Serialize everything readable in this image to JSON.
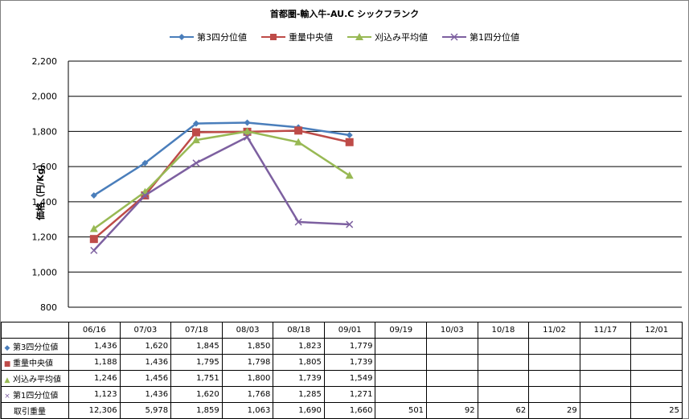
{
  "chart_data": {
    "type": "line",
    "title": "首都圏-輸入牛-AU.C シックフランク",
    "ylabel": "価格（円/Kg）",
    "ylim": [
      800,
      2200
    ],
    "yticks": [
      "800",
      "1,000",
      "1,200",
      "1,400",
      "1,600",
      "1,800",
      "2,000",
      "2,200"
    ],
    "categories": [
      "06/16",
      "07/03",
      "07/18",
      "08/03",
      "08/18",
      "09/01",
      "09/19",
      "10/03",
      "10/18",
      "11/02",
      "11/17",
      "12/01"
    ],
    "series": [
      {
        "name": "第3四分位値",
        "color": "#4a7ebb",
        "marker": "diamond",
        "values": [
          1436,
          1620,
          1845,
          1850,
          1823,
          1779,
          null,
          null,
          null,
          null,
          null,
          null
        ],
        "labels": [
          "1,436",
          "1,620",
          "1,845",
          "1,850",
          "1,823",
          "1,779",
          "",
          "",
          "",
          "",
          "",
          ""
        ]
      },
      {
        "name": "重量中央値",
        "color": "#be4b48",
        "marker": "square",
        "values": [
          1188,
          1436,
          1795,
          1798,
          1805,
          1739,
          null,
          null,
          null,
          null,
          null,
          null
        ],
        "labels": [
          "1,188",
          "1,436",
          "1,795",
          "1,798",
          "1,805",
          "1,739",
          "",
          "",
          "",
          "",
          "",
          ""
        ]
      },
      {
        "name": "刈込み平均値",
        "color": "#98b954",
        "marker": "triangle",
        "values": [
          1246,
          1456,
          1751,
          1800,
          1739,
          1549,
          null,
          null,
          null,
          null,
          null,
          null
        ],
        "labels": [
          "1,246",
          "1,456",
          "1,751",
          "1,800",
          "1,739",
          "1,549",
          "",
          "",
          "",
          "",
          "",
          ""
        ]
      },
      {
        "name": "第1四分位値",
        "color": "#7d60a0",
        "marker": "x",
        "values": [
          1123,
          1436,
          1620,
          1768,
          1285,
          1271,
          null,
          null,
          null,
          null,
          null,
          null
        ],
        "labels": [
          "1,123",
          "1,436",
          "1,620",
          "1,768",
          "1,285",
          "1,271",
          "",
          "",
          "",
          "",
          "",
          ""
        ]
      }
    ],
    "extra_row": {
      "name": "取引重量",
      "labels": [
        "12,306",
        "5,978",
        "1,859",
        "1,063",
        "1,690",
        "1,660",
        "501",
        "92",
        "62",
        "29",
        "",
        "25"
      ]
    },
    "grid": true,
    "legend_position": "top"
  }
}
